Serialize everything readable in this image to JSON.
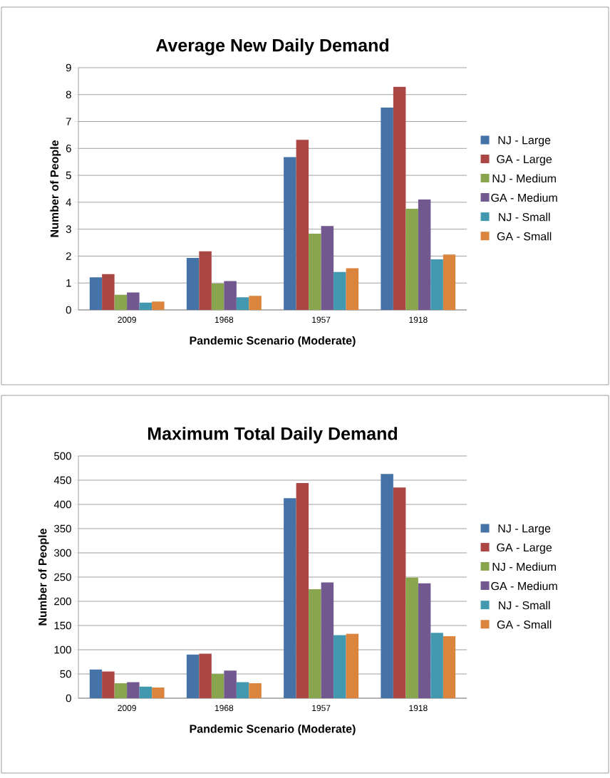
{
  "chart_data": [
    {
      "type": "bar",
      "title": "Average New Daily Demand",
      "xlabel": "Pandemic Scenario  (Moderate)",
      "ylabel": "Number of People",
      "categories": [
        "2009",
        "1968",
        "1957",
        "1918"
      ],
      "ylim": [
        0,
        9
      ],
      "yticks": [
        0,
        1,
        2,
        3,
        4,
        5,
        6,
        7,
        8,
        9
      ],
      "grid": "y",
      "legend": "right",
      "series": [
        {
          "name": "NJ - Large",
          "color": "#4572a7",
          "values": [
            1.21,
            1.93,
            5.68,
            7.52
          ]
        },
        {
          "name": "GA - Large",
          "color": "#aa4643",
          "values": [
            1.33,
            2.18,
            6.32,
            8.29
          ]
        },
        {
          "name": "NJ - Medium",
          "color": "#89a54e",
          "values": [
            0.56,
            0.98,
            2.83,
            3.76
          ]
        },
        {
          "name": "GA - Medium",
          "color": "#71588f",
          "values": [
            0.65,
            1.07,
            3.12,
            4.1
          ]
        },
        {
          "name": "NJ - Small",
          "color": "#4198af",
          "values": [
            0.27,
            0.47,
            1.41,
            1.88
          ]
        },
        {
          "name": "GA - Small",
          "color": "#db843d",
          "values": [
            0.31,
            0.52,
            1.55,
            2.06
          ]
        }
      ]
    },
    {
      "type": "bar",
      "title": "Maximum Total Daily Demand",
      "xlabel": "Pandemic Scenario  (Moderate)",
      "ylabel": "Number of People",
      "categories": [
        "2009",
        "1968",
        "1957",
        "1918"
      ],
      "ylim": [
        0,
        500
      ],
      "yticks": [
        0,
        50,
        100,
        150,
        200,
        250,
        300,
        350,
        400,
        450,
        500
      ],
      "grid": "y",
      "legend": "right",
      "series": [
        {
          "name": "NJ - Large",
          "color": "#4572a7",
          "values": [
            59,
            90,
            413,
            463
          ]
        },
        {
          "name": "GA - Large",
          "color": "#aa4643",
          "values": [
            55,
            92,
            444,
            435
          ]
        },
        {
          "name": "NJ - Medium",
          "color": "#89a54e",
          "values": [
            31,
            50,
            225,
            249
          ]
        },
        {
          "name": "GA - Medium",
          "color": "#71588f",
          "values": [
            33,
            57,
            239,
            237
          ]
        },
        {
          "name": "NJ - Small",
          "color": "#4198af",
          "values": [
            24,
            33,
            130,
            135
          ]
        },
        {
          "name": "GA - Small",
          "color": "#db843d",
          "values": [
            22,
            31,
            133,
            128
          ]
        }
      ]
    }
  ]
}
